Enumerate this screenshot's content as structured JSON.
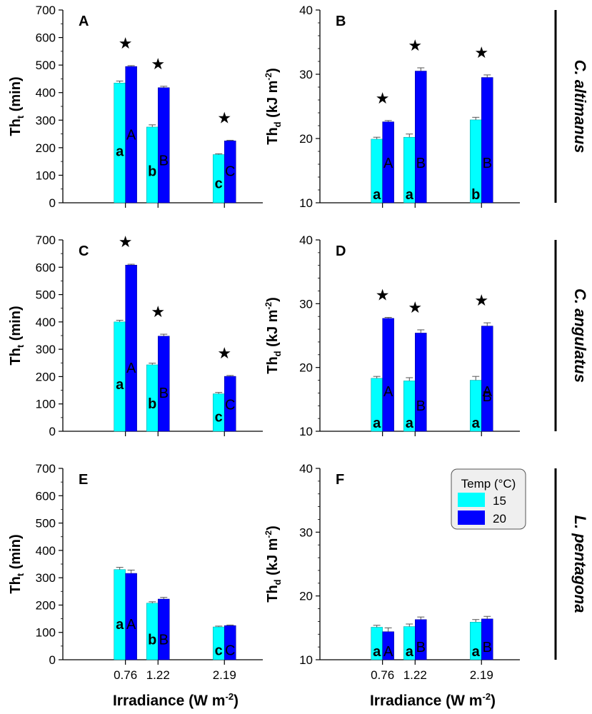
{
  "legend": {
    "title": "Temp (°C)",
    "items": [
      {
        "label": "15",
        "color": "#00ffff"
      },
      {
        "label": "20",
        "color": "#0000ff"
      }
    ]
  },
  "x_axis": {
    "label": "Irradiance (W m",
    "label_sup": "-2",
    "label_end": ")",
    "ticks": [
      "0.76",
      "1.22",
      "2.19"
    ]
  },
  "species": [
    {
      "name": "C. altimanus"
    },
    {
      "name": "C. angulatus"
    },
    {
      "name": "L. pentagona"
    }
  ],
  "colors": {
    "t15": "#00ffff",
    "t20": "#0000ff",
    "text": "#000000"
  },
  "chart_data": [
    {
      "panel": "A",
      "type": "bar",
      "species": "C. altimanus",
      "metric": "Th_t",
      "ylabel": "Th",
      "ylabel_sub": "t",
      "ylabel_unit": " (min)",
      "ylim": [
        0,
        700
      ],
      "yticks": [
        "0",
        "100",
        "200",
        "300",
        "400",
        "500",
        "600",
        "700"
      ],
      "categories": [
        "0.76",
        "1.22",
        "2.19"
      ],
      "series": [
        {
          "name": "15",
          "values": [
            435,
            275,
            175
          ],
          "errors": [
            7,
            8,
            3
          ],
          "letters": [
            "a",
            "b",
            "c"
          ]
        },
        {
          "name": "20",
          "values": [
            495,
            418,
            225
          ],
          "errors": [
            3,
            5,
            2
          ],
          "letters": [
            "A",
            "B",
            "C"
          ]
        }
      ],
      "stars": [
        "★",
        "★",
        "★"
      ]
    },
    {
      "panel": "B",
      "type": "bar",
      "species": "C. altimanus",
      "metric": "Th_d",
      "ylabel": "Th",
      "ylabel_sub": "d",
      "ylabel_unit": " (kJ m",
      "ylim": [
        10,
        40
      ],
      "yticks": [
        "10",
        "20",
        "30",
        "40"
      ],
      "categories": [
        "0.76",
        "1.22",
        "2.19"
      ],
      "series": [
        {
          "name": "15",
          "values": [
            19.9,
            20.2,
            22.9
          ],
          "errors": [
            0.3,
            0.5,
            0.4
          ],
          "letters": [
            "a",
            "a",
            "b"
          ]
        },
        {
          "name": "20",
          "values": [
            22.6,
            30.5,
            29.5
          ],
          "errors": [
            0.2,
            0.5,
            0.4
          ],
          "letters": [
            "A",
            "B",
            "B"
          ]
        }
      ],
      "stars": [
        "★",
        "★",
        "★"
      ]
    },
    {
      "panel": "C",
      "type": "bar",
      "species": "C. angulatus",
      "metric": "Th_t",
      "ylabel": "Th",
      "ylabel_sub": "t",
      "ylabel_unit": " (min)",
      "ylim": [
        0,
        700
      ],
      "yticks": [
        "0",
        "100",
        "200",
        "300",
        "400",
        "500",
        "600",
        "700"
      ],
      "categories": [
        "0.76",
        "1.22",
        "2.19"
      ],
      "series": [
        {
          "name": "15",
          "values": [
            400,
            243,
            137
          ],
          "errors": [
            6,
            6,
            5
          ],
          "letters": [
            "a",
            "b",
            "c"
          ]
        },
        {
          "name": "20",
          "values": [
            608,
            348,
            201
          ],
          "errors": [
            3,
            7,
            3
          ],
          "letters": [
            "A",
            "B",
            "C"
          ]
        }
      ],
      "stars": [
        "★",
        "★",
        "★"
      ]
    },
    {
      "panel": "D",
      "type": "bar",
      "species": "C. angulatus",
      "metric": "Th_d",
      "ylabel": "Th",
      "ylabel_sub": "d",
      "ylabel_unit": " (kJ m",
      "ylim": [
        10,
        40
      ],
      "yticks": [
        "10",
        "20",
        "30",
        "40"
      ],
      "categories": [
        "0.76",
        "1.22",
        "2.19"
      ],
      "series": [
        {
          "name": "15",
          "values": [
            18.3,
            17.9,
            18.0
          ],
          "errors": [
            0.3,
            0.5,
            0.6
          ],
          "letters": [
            "a",
            "a",
            "a"
          ]
        },
        {
          "name": "20",
          "values": [
            27.7,
            25.4,
            26.5
          ],
          "errors": [
            0.15,
            0.5,
            0.5
          ],
          "letters": [
            "A",
            "B",
            "A"
          ]
        }
      ],
      "extra_letters": [
        {
          "category": 2,
          "series": 1,
          "text": "B",
          "value": 15.5
        }
      ],
      "stars": [
        "★",
        "★",
        "★"
      ]
    },
    {
      "panel": "E",
      "type": "bar",
      "species": "L. pentagona",
      "metric": "Th_t",
      "ylabel": "Th",
      "ylabel_sub": "t",
      "ylabel_unit": " (min)",
      "ylim": [
        0,
        700
      ],
      "yticks": [
        "0",
        "100",
        "200",
        "300",
        "400",
        "500",
        "600",
        "700"
      ],
      "categories": [
        "0.76",
        "1.22",
        "2.19"
      ],
      "series": [
        {
          "name": "15",
          "values": [
            330,
            207,
            120
          ],
          "errors": [
            8,
            5,
            3
          ],
          "letters": [
            "a",
            "b",
            "c"
          ]
        },
        {
          "name": "20",
          "values": [
            316,
            222,
            125
          ],
          "errors": [
            12,
            6,
            2
          ],
          "letters": [
            "A",
            "B",
            "C"
          ]
        }
      ],
      "stars": []
    },
    {
      "panel": "F",
      "type": "bar",
      "species": "L. pentagona",
      "metric": "Th_d",
      "ylabel": "Th",
      "ylabel_sub": "d",
      "ylabel_unit": " (kJ m",
      "ylim": [
        10,
        40
      ],
      "yticks": [
        "10",
        "20",
        "30",
        "40"
      ],
      "categories": [
        "0.76",
        "1.22",
        "2.19"
      ],
      "series": [
        {
          "name": "15",
          "values": [
            15.1,
            15.2,
            15.9
          ],
          "errors": [
            0.3,
            0.4,
            0.4
          ],
          "letters": [
            "a",
            "a",
            "a"
          ]
        },
        {
          "name": "20",
          "values": [
            14.4,
            16.3,
            16.4
          ],
          "errors": [
            0.6,
            0.4,
            0.4
          ],
          "letters": [
            "A",
            "B",
            "B"
          ]
        }
      ],
      "stars": []
    }
  ]
}
